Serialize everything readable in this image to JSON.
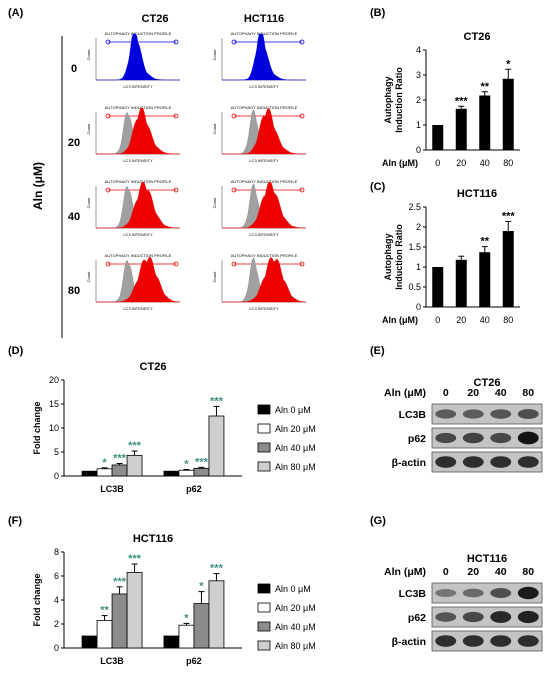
{
  "panel_labels": [
    "(A)",
    "(B)",
    "(C)",
    "(D)",
    "(E)",
    "(F)",
    "(G)"
  ],
  "flow": {
    "columns": [
      "CT26",
      "HCT116"
    ],
    "doses": [
      "0",
      "20",
      "40",
      "80"
    ],
    "axis_label": "Aln (μM)",
    "plot_title": "AUTOPHAGY INDUCTION PROFILE",
    "x_label": "LC3 INTENSITY",
    "y_label": "Count",
    "colors": {
      "control": "#0000dd",
      "treated": "#ee0000",
      "baseline": "#a0a0a0"
    }
  },
  "western": [
    {
      "title": "CT26",
      "dose_label": "Aln (μM)",
      "doses": [
        "0",
        "20",
        "40",
        "80"
      ],
      "rows": [
        {
          "label": "LC3B",
          "intensity": [
            0.45,
            0.45,
            0.5,
            0.55
          ]
        },
        {
          "label": "p62",
          "intensity": [
            0.6,
            0.65,
            0.6,
            1.0
          ]
        },
        {
          "label": "β-actin",
          "intensity": [
            0.8,
            0.8,
            0.8,
            0.8
          ]
        }
      ]
    },
    {
      "title": "HCT116",
      "dose_label": "Aln (μM)",
      "doses": [
        "0",
        "20",
        "40",
        "80"
      ],
      "rows": [
        {
          "label": "LC3B",
          "intensity": [
            0.25,
            0.35,
            0.55,
            0.95
          ]
        },
        {
          "label": "p62",
          "intensity": [
            0.5,
            0.6,
            0.85,
            0.9
          ]
        },
        {
          "label": "β-actin",
          "intensity": [
            0.8,
            0.8,
            0.8,
            0.8
          ]
        }
      ]
    }
  ],
  "chart_data": [
    {
      "id": "B",
      "type": "bar",
      "title": "CT26",
      "ylabel": "Autophagy Induction Ratio",
      "xlabel": "Aln (μM)",
      "categories": [
        "0",
        "20",
        "40",
        "80"
      ],
      "values": [
        1.0,
        1.65,
        2.18,
        2.85
      ],
      "errors": [
        0,
        0.1,
        0.15,
        0.38
      ],
      "sig": [
        "",
        "***",
        "**",
        "*"
      ],
      "ylim": [
        0,
        4
      ],
      "yticks": [
        0,
        1,
        2,
        3,
        4
      ]
    },
    {
      "id": "C",
      "type": "bar",
      "title": "HCT116",
      "ylabel": "Autophagy Induction Ratio",
      "xlabel": "Aln (μM)",
      "categories": [
        "0",
        "20",
        "40",
        "80"
      ],
      "values": [
        1.0,
        1.18,
        1.37,
        1.9
      ],
      "errors": [
        0,
        0.09,
        0.14,
        0.24
      ],
      "sig": [
        "",
        "",
        "**",
        "***"
      ],
      "ylim": [
        0,
        2.5
      ],
      "yticks": [
        0,
        0.5,
        1,
        1.5,
        2,
        2.5
      ]
    },
    {
      "id": "D",
      "type": "bar",
      "title": "CT26",
      "ylabel": "Fold change",
      "categories": [
        "LC3B",
        "p62"
      ],
      "series": [
        {
          "name": "Aln 0 μM",
          "color": "#000000",
          "values": [
            1.0,
            1.0
          ],
          "errors": [
            0,
            0
          ],
          "sig": [
            "",
            ""
          ]
        },
        {
          "name": "Aln 20 μM",
          "color": "#ffffff",
          "values": [
            1.5,
            1.2
          ],
          "errors": [
            0.2,
            0.15
          ],
          "sig": [
            "*",
            "*"
          ]
        },
        {
          "name": "Aln 40 μM",
          "color": "#8c8c8c",
          "values": [
            2.3,
            1.6
          ],
          "errors": [
            0.3,
            0.2
          ],
          "sig": [
            "***",
            "***"
          ]
        },
        {
          "name": "Aln 80 μM",
          "color": "#cfcfcf",
          "values": [
            4.3,
            12.5
          ],
          "errors": [
            0.9,
            2.0
          ],
          "sig": [
            "***",
            "***"
          ]
        }
      ],
      "ylim": [
        0,
        20
      ],
      "yticks": [
        0,
        5,
        10,
        15,
        20
      ],
      "legend": "right"
    },
    {
      "id": "F",
      "type": "bar",
      "title": "HCT116",
      "ylabel": "Fold change",
      "categories": [
        "LC3B",
        "p62"
      ],
      "series": [
        {
          "name": "Aln 0 μM",
          "color": "#000000",
          "values": [
            1.0,
            1.0
          ],
          "errors": [
            0,
            0
          ],
          "sig": [
            "",
            ""
          ]
        },
        {
          "name": "Aln 20 μM",
          "color": "#ffffff",
          "values": [
            2.3,
            1.9
          ],
          "errors": [
            0.4,
            0.15
          ],
          "sig": [
            "**",
            "*"
          ]
        },
        {
          "name": "Aln 40 μM",
          "color": "#8c8c8c",
          "values": [
            4.5,
            3.7
          ],
          "errors": [
            0.6,
            1.0
          ],
          "sig": [
            "***",
            "*"
          ]
        },
        {
          "name": "Aln 80 μM",
          "color": "#cfcfcf",
          "values": [
            6.3,
            5.6
          ],
          "errors": [
            0.7,
            0.6
          ],
          "sig": [
            "***",
            "***"
          ]
        }
      ],
      "ylim": [
        0,
        8
      ],
      "yticks": [
        0,
        2,
        4,
        6,
        8
      ],
      "legend": "right"
    }
  ]
}
